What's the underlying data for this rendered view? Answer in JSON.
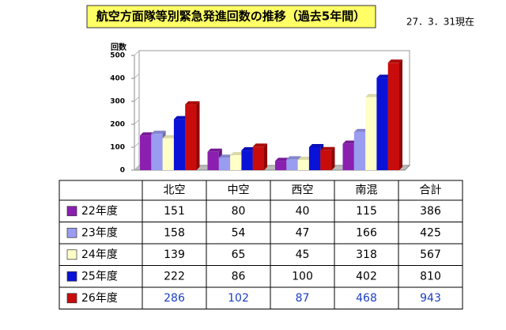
{
  "chart_data": {
    "type": "bar",
    "title": "航空方面隊等別緊急発進回数の推移（過去5年間）",
    "date_note": "27．3．31現在",
    "y_label": "回数",
    "categories": [
      "北空",
      "中空",
      "西空",
      "南混"
    ],
    "total_label": "合計",
    "ylim": [
      0,
      500
    ],
    "yticks": [
      0,
      100,
      200,
      300,
      400,
      500
    ],
    "series": [
      {
        "name": "22年度",
        "color": "#8a1fb0",
        "values": [
          151,
          80,
          40,
          115
        ],
        "total": 386
      },
      {
        "name": "23年度",
        "color": "#9a9cf0",
        "values": [
          158,
          54,
          47,
          166
        ],
        "total": 425
      },
      {
        "name": "24年度",
        "color": "#ffffc8",
        "values": [
          139,
          65,
          45,
          318
        ],
        "total": 567
      },
      {
        "name": "25年度",
        "color": "#0a12d8",
        "values": [
          222,
          86,
          100,
          402
        ],
        "total": 810
      },
      {
        "name": "26年度",
        "color": "#c80c0c",
        "values": [
          286,
          102,
          87,
          468
        ],
        "total": 943,
        "text_color": "#1a3fc0"
      }
    ]
  }
}
